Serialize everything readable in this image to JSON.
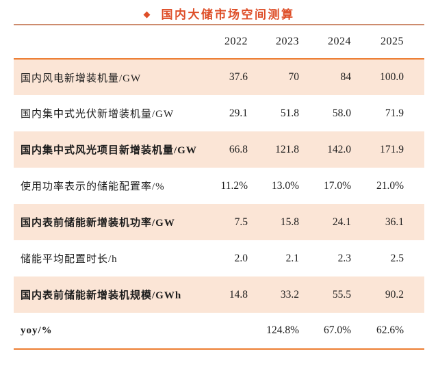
{
  "title": {
    "bullet": "◆",
    "text": "国内大储市场空间测算"
  },
  "colors": {
    "accent": "#ED7D31",
    "row_fill": "#FBE5D6",
    "title_color": "#DE4E28",
    "rule": "#CD8C6E",
    "text": "#1c1c1c"
  },
  "table": {
    "columns": [
      "2022",
      "2023",
      "2024",
      "2025"
    ],
    "rows": [
      {
        "label": "国内风电新增装机量/GW",
        "values": [
          "37.6",
          "70",
          "84",
          "100.0"
        ],
        "bold": false
      },
      {
        "label": "国内集中式光伏新增装机量/GW",
        "values": [
          "29.1",
          "51.8",
          "58.0",
          "71.9"
        ],
        "bold": false
      },
      {
        "label": "国内集中式风光项目新增装机量/GW",
        "values": [
          "66.8",
          "121.8",
          "142.0",
          "171.9"
        ],
        "bold": true
      },
      {
        "label": "使用功率表示的储能配置率/%",
        "values": [
          "11.2%",
          "13.0%",
          "17.0%",
          "21.0%"
        ],
        "bold": false
      },
      {
        "label": "国内表前储能新增装机功率/GW",
        "values": [
          "7.5",
          "15.8",
          "24.1",
          "36.1"
        ],
        "bold": true
      },
      {
        "label": "储能平均配置时长/h",
        "values": [
          "2.0",
          "2.1",
          "2.3",
          "2.5"
        ],
        "bold": false
      },
      {
        "label": "国内表前储能新增装机规模/GWh",
        "values": [
          "14.8",
          "33.2",
          "55.5",
          "90.2"
        ],
        "bold": true
      },
      {
        "label": "yoy/%",
        "values": [
          "",
          "124.8%",
          "67.0%",
          "62.6%"
        ],
        "bold": true
      }
    ]
  }
}
